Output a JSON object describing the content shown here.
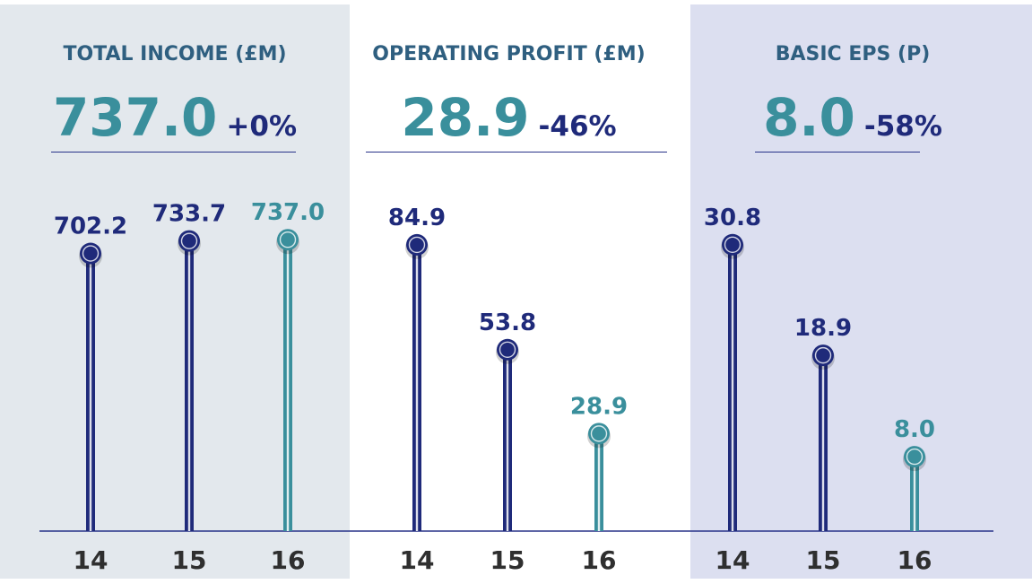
{
  "colors": {
    "primary": "#1f2a7a",
    "highlight": "#3a8f9c",
    "year_label": "#2f2f2f",
    "title": "#2f5f80"
  },
  "panels": [
    {
      "title": "TOTAL INCOME (£M)",
      "headline_value": "737.0",
      "headline_change": "+0%"
    },
    {
      "title": "OPERATING PROFIT (£M)",
      "headline_value": "28.9",
      "headline_change": "-46%"
    },
    {
      "title": "BASIC EPS (P)",
      "headline_value": "8.0",
      "headline_change": "-58%"
    }
  ],
  "chart_data": [
    {
      "type": "lollipop",
      "title": "TOTAL INCOME (£M)",
      "categories": [
        "14",
        "15",
        "16"
      ],
      "values": [
        702.2,
        733.7,
        737.0
      ],
      "labels": [
        "702.2",
        "733.7",
        "737.0"
      ],
      "highlight_index": 2,
      "ylim": [
        0,
        776
      ]
    },
    {
      "type": "lollipop",
      "title": "OPERATING PROFIT (£M)",
      "categories": [
        "14",
        "15",
        "16"
      ],
      "values": [
        84.9,
        53.8,
        28.9
      ],
      "labels": [
        "84.9",
        "53.8",
        "28.9"
      ],
      "highlight_index": 2,
      "ylim": [
        0,
        91
      ]
    },
    {
      "type": "lollipop",
      "title": "BASIC EPS (P)",
      "categories": [
        "14",
        "15",
        "16"
      ],
      "values": [
        30.8,
        18.9,
        8.0
      ],
      "labels": [
        "30.8",
        "18.9",
        "8.0"
      ],
      "highlight_index": 2,
      "ylim": [
        0,
        33
      ]
    }
  ]
}
